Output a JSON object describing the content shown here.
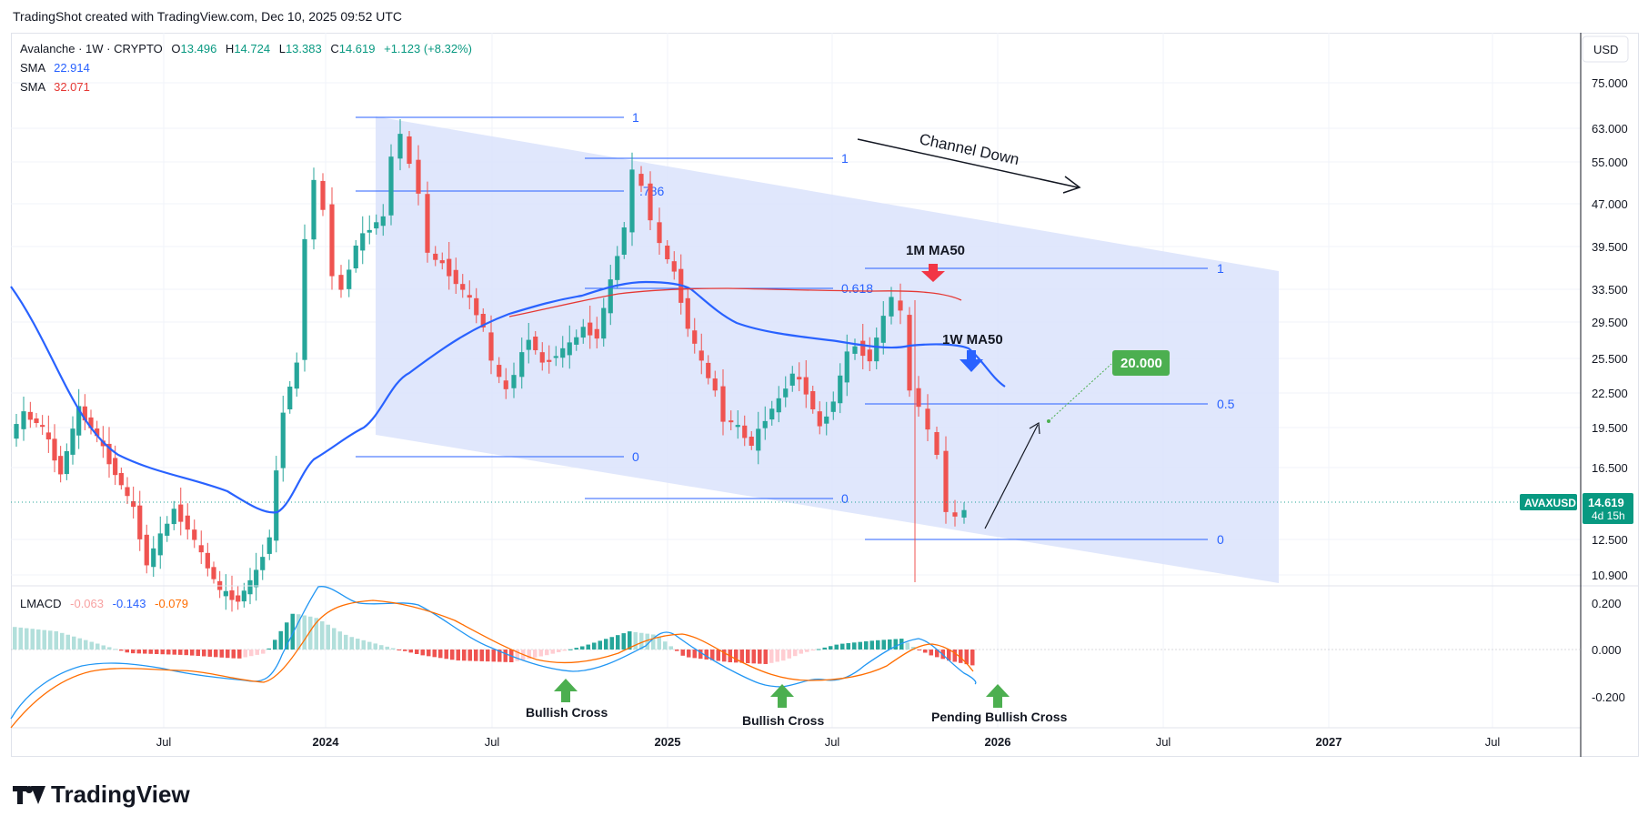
{
  "header": {
    "created_line": "TradingShot created with TradingView.com, Dec 10, 2025 09:52 UTC"
  },
  "legend": {
    "title": "Avalanche · 1W · CRYPTO",
    "o_label": "O",
    "o": "13.496",
    "h_label": "H",
    "h": "14.724",
    "l_label": "L",
    "l": "13.383",
    "c_label": "C",
    "c": "14.619",
    "change": "+1.123 (+8.32%)",
    "sma1_label": "SMA",
    "sma1_value": "22.914",
    "sma2_label": "SMA",
    "sma2_value": "32.071"
  },
  "price_axis": {
    "currency": "USD",
    "ticks": [
      "75.000",
      "63.000",
      "55.000",
      "47.000",
      "39.500",
      "33.500",
      "29.500",
      "25.500",
      "22.500",
      "19.500",
      "16.500",
      "12.500",
      "10.900"
    ],
    "symbol_tag": "AVAXUSD",
    "last_price": "14.619",
    "countdown": "4d 15h"
  },
  "macd": {
    "label": "LMACD",
    "v1": "-0.063",
    "v2": "-0.143",
    "v3": "-0.079",
    "ticks": [
      "0.200",
      "0.000",
      "-0.200"
    ]
  },
  "time_axis": [
    "Jul",
    "2024",
    "Jul",
    "2025",
    "Jul",
    "2026",
    "Jul",
    "2027",
    "Jul"
  ],
  "annotations": {
    "channel": "Channel Down",
    "ma_1m": "1M MA50",
    "ma_1w": "1W MA50",
    "target": "20.000",
    "bullish_cross_1": "Bullish Cross",
    "bullish_cross_2": "Bullish Cross",
    "pending_cross": "Pending Bullish Cross"
  },
  "fib_levels": [
    {
      "label": "1"
    },
    {
      "label": "0"
    },
    {
      "label": "1"
    },
    {
      "label": ".786"
    },
    {
      "label": "0.618"
    },
    {
      "label": "0"
    },
    {
      "label": "1"
    },
    {
      "label": "0.5"
    },
    {
      "label": "0"
    }
  ],
  "colors": {
    "up": "#26a69a",
    "down": "#ef5350",
    "sma_blue": "#2962ff",
    "sma_red": "#e53935",
    "channel_fill": "#dbe3fc",
    "fib": "#2962ff",
    "target_box": "#4caf50",
    "macd_blue": "#2196f3",
    "macd_orange": "#ff6d00"
  },
  "brand": {
    "logo_text": "TradingView"
  },
  "chart_data": {
    "type": "candlestick",
    "price_scale": "log",
    "ylim": [
      10.9,
      75.0
    ],
    "macd_ylim": [
      -0.25,
      0.25
    ],
    "time_range": [
      "2023-02",
      "2027-10"
    ],
    "candles_summary": [
      {
        "period": "2023-02",
        "o": 20.5,
        "h": 22.0,
        "l": 16.0,
        "c": 18.0
      },
      {
        "period": "2023-06",
        "o": 14.0,
        "h": 15.0,
        "l": 11.0,
        "c": 12.0
      },
      {
        "period": "2023-10",
        "o": 9.5,
        "h": 10.5,
        "l": 9.0,
        "c": 10.0
      },
      {
        "period": "2023-12",
        "o": 20.0,
        "h": 50.0,
        "l": 19.0,
        "c": 45.0
      },
      {
        "period": "2024-03",
        "o": 45.0,
        "h": 65.0,
        "l": 38.0,
        "c": 55.0
      },
      {
        "period": "2024-06",
        "o": 34.0,
        "h": 38.0,
        "l": 25.0,
        "c": 26.0
      },
      {
        "period": "2024-08",
        "o": 22.0,
        "h": 26.0,
        "l": 17.0,
        "c": 22.0
      },
      {
        "period": "2024-12",
        "o": 40.0,
        "h": 55.0,
        "l": 37.0,
        "c": 43.0
      },
      {
        "period": "2025-03",
        "o": 20.0,
        "h": 24.0,
        "l": 15.0,
        "c": 18.5
      },
      {
        "period": "2025-04",
        "o": 16.0,
        "h": 19.0,
        "l": 15.0,
        "c": 17.0
      },
      {
        "period": "2025-09",
        "o": 28.0,
        "h": 36.0,
        "l": 26.0,
        "c": 30.0
      },
      {
        "period": "2025-10",
        "o": 28.0,
        "h": 29.0,
        "l": 10.0,
        "c": 21.0
      },
      {
        "period": "2025-12",
        "o": 13.5,
        "h": 14.7,
        "l": 13.4,
        "c": 14.6
      }
    ],
    "series": [
      {
        "name": "SMA",
        "value": 22.914
      },
      {
        "name": "SMA",
        "value": 32.071
      }
    ]
  }
}
